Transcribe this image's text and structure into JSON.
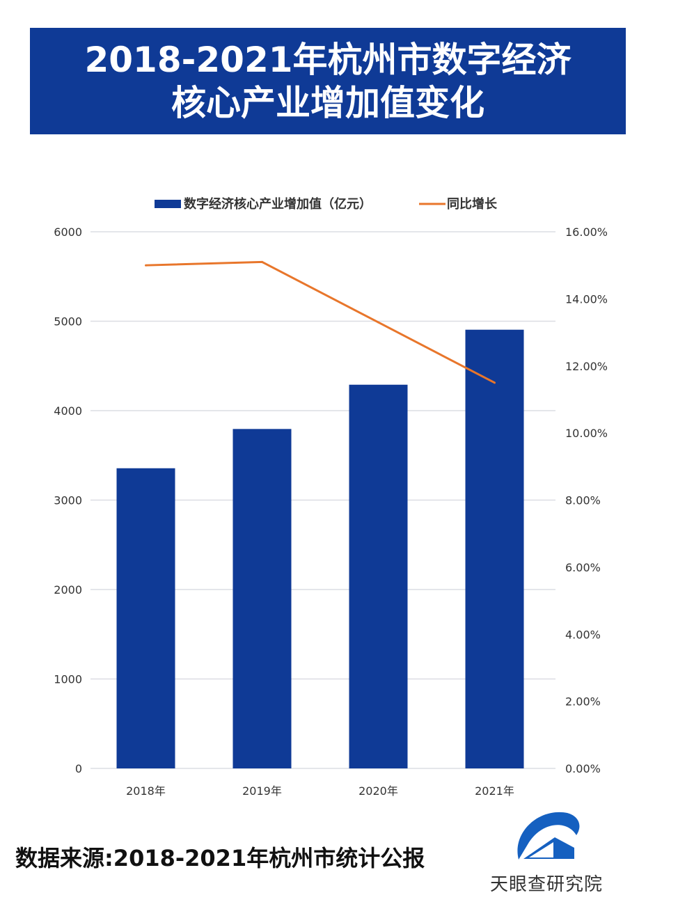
{
  "header": {
    "title_line1": "2018-2021年杭州市数字经济",
    "title_line2": "核心产业增加值变化"
  },
  "chart_data": {
    "type": "bar",
    "categories": [
      "2018年",
      "2019年",
      "2020年",
      "2021年"
    ],
    "series": [
      {
        "name": "数字经济核心产业增加值（亿元）",
        "type": "bar",
        "axis": "left",
        "color": "#0f3a96",
        "values": [
          3356,
          3795,
          4290,
          4905
        ]
      },
      {
        "name": "同比增长",
        "type": "line",
        "axis": "right",
        "color": "#e8762b",
        "values": [
          15.0,
          15.1,
          13.3,
          11.5
        ]
      }
    ],
    "y_left": {
      "range": [
        0,
        6000
      ],
      "ticks": [
        "0",
        "1000",
        "2000",
        "3000",
        "4000",
        "5000",
        "6000"
      ]
    },
    "y_right": {
      "range": [
        0,
        16
      ],
      "ticks": [
        "0.00%",
        "2.00%",
        "4.00%",
        "6.00%",
        "8.00%",
        "10.00%",
        "12.00%",
        "14.00%",
        "16.00%"
      ]
    },
    "grid": true,
    "legend": "top"
  },
  "footer": {
    "source": "数据来源:2018-2021年杭州市统计公报",
    "logo_text": "天眼查研究院"
  }
}
